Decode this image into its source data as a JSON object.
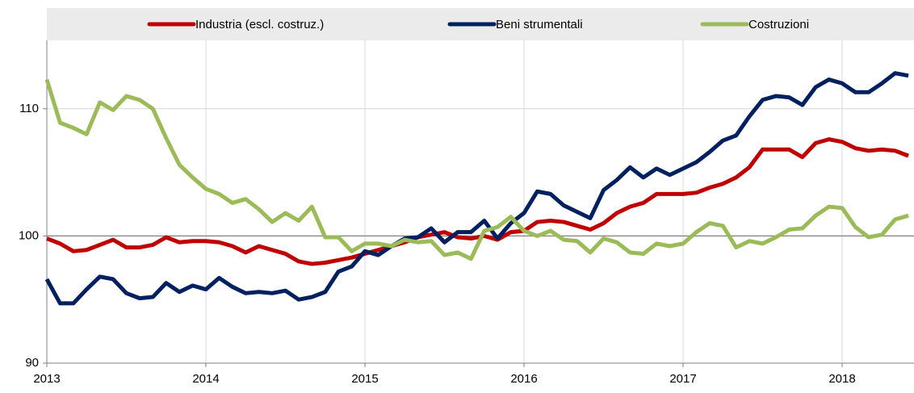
{
  "chart_data": {
    "type": "line",
    "categories": [
      "2013",
      null,
      null,
      null,
      null,
      null,
      null,
      null,
      null,
      null,
      null,
      null,
      "2014",
      null,
      null,
      null,
      null,
      null,
      null,
      null,
      null,
      null,
      null,
      null,
      "2015",
      null,
      null,
      null,
      null,
      null,
      null,
      null,
      null,
      null,
      null,
      null,
      "2016",
      null,
      null,
      null,
      null,
      null,
      null,
      null,
      null,
      null,
      null,
      null,
      "2017",
      null,
      null,
      null,
      null,
      null,
      null,
      null,
      null,
      null,
      null,
      null,
      "2018",
      null,
      null,
      null,
      null,
      null
    ],
    "series": [
      {
        "name": "Industria (escl. costruz.)",
        "color": "#c00000",
        "values": [
          99.8,
          99.4,
          98.8,
          98.9,
          99.3,
          99.7,
          99.1,
          99.1,
          99.3,
          99.9,
          99.5,
          99.6,
          99.6,
          99.5,
          99.2,
          98.7,
          99.2,
          98.9,
          98.6,
          98.0,
          97.8,
          97.9,
          98.1,
          98.3,
          98.6,
          98.9,
          99.2,
          99.5,
          99.9,
          100.1,
          100.3,
          99.9,
          99.8,
          100.0,
          99.7,
          100.3,
          100.4,
          101.1,
          101.2,
          101.1,
          100.8,
          100.5,
          101.0,
          101.8,
          102.3,
          102.6,
          103.3,
          103.3,
          103.3,
          103.4,
          103.8,
          104.1,
          104.6,
          105.4,
          106.8,
          106.8,
          106.8,
          106.2,
          107.3,
          107.6,
          107.4,
          106.9,
          106.7,
          106.8,
          106.7,
          106.3
        ]
      },
      {
        "name": "Beni strumentali",
        "color": "#002060",
        "values": [
          96.6,
          94.7,
          94.7,
          95.8,
          96.8,
          96.6,
          95.5,
          95.1,
          95.2,
          96.3,
          95.6,
          96.1,
          95.8,
          96.7,
          96.0,
          95.5,
          95.6,
          95.5,
          95.7,
          95.0,
          95.2,
          95.6,
          97.2,
          97.6,
          98.8,
          98.5,
          99.2,
          99.8,
          99.9,
          100.6,
          99.5,
          100.3,
          100.3,
          101.2,
          99.8,
          101.0,
          101.8,
          103.5,
          103.3,
          102.4,
          101.9,
          101.4,
          103.6,
          104.4,
          105.4,
          104.6,
          105.3,
          104.8,
          105.3,
          105.8,
          106.6,
          107.5,
          107.9,
          109.4,
          110.7,
          111.0,
          110.9,
          110.3,
          111.7,
          112.3,
          112.0,
          111.3,
          111.3,
          112.0,
          112.8,
          112.6
        ]
      },
      {
        "name": "Costruzioni",
        "color": "#9bbb59",
        "values": [
          112.3,
          108.9,
          108.5,
          108.0,
          110.5,
          109.9,
          111.0,
          110.7,
          110.0,
          107.7,
          105.6,
          104.6,
          103.7,
          103.3,
          102.6,
          102.9,
          102.1,
          101.1,
          101.8,
          101.2,
          102.3,
          99.9,
          99.9,
          98.8,
          99.4,
          99.4,
          99.2,
          99.7,
          99.5,
          99.6,
          98.5,
          98.7,
          98.2,
          100.4,
          100.7,
          101.5,
          100.4,
          100.0,
          100.4,
          99.7,
          99.6,
          98.7,
          99.8,
          99.5,
          98.7,
          98.6,
          99.4,
          99.2,
          99.4,
          100.3,
          101.0,
          100.8,
          99.1,
          99.6,
          99.4,
          99.9,
          100.5,
          100.6,
          101.6,
          102.3,
          102.2,
          100.7,
          99.9,
          100.1,
          101.3,
          101.6
        ]
      }
    ],
    "ylim": [
      90,
      115
    ],
    "yticks": [
      90,
      100,
      110
    ],
    "reference_line": 100,
    "grid": true,
    "legend": "top"
  }
}
